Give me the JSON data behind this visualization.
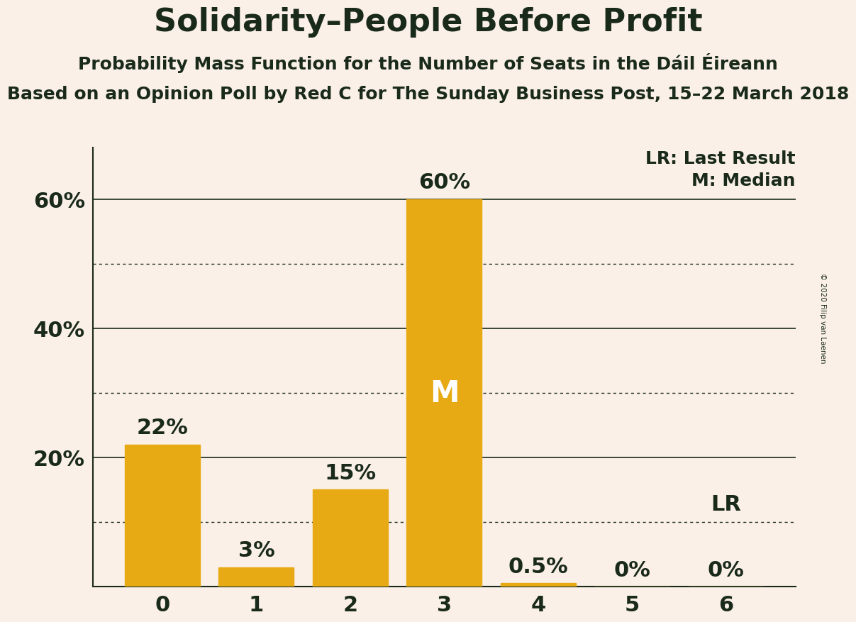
{
  "title": "Solidarity–People Before Profit",
  "subtitle1": "Probability Mass Function for the Number of Seats in the Dáil Éireann",
  "subtitle2": "Based on an Opinion Poll by Red C for The Sunday Business Post, 15–22 March 2018",
  "copyright": "© 2020 Filip van Laenen",
  "categories": [
    0,
    1,
    2,
    3,
    4,
    5,
    6
  ],
  "values": [
    0.22,
    0.03,
    0.15,
    0.6,
    0.005,
    0.0,
    0.0
  ],
  "bar_color": "#E8AA14",
  "background_color": "#FAF0E8",
  "text_color": "#1A2A1A",
  "median_bar": 3,
  "lr_value": 0.1,
  "bar_labels": [
    "22%",
    "3%",
    "15%",
    "60%",
    "0.5%",
    "0%",
    "0%"
  ],
  "solid_lines": [
    0.2,
    0.4,
    0.6
  ],
  "dotted_lines": [
    0.1,
    0.3,
    0.5
  ],
  "legend_lr": "LR: Last Result",
  "legend_m": "M: Median",
  "ylim": [
    0,
    0.68
  ],
  "title_fontsize": 32,
  "subtitle_fontsize": 18,
  "tick_fontsize": 22,
  "legend_fontsize": 18,
  "bar_label_fontsize": 22,
  "m_fontsize": 30,
  "lr_label_fontsize": 22
}
